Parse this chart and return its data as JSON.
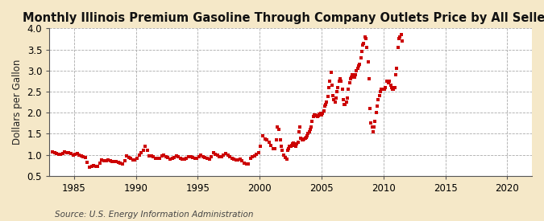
{
  "title": "Monthly Illinois Premium Gasoline Through Company Outlets Price by All Sellers",
  "ylabel": "Dollars per Gallon",
  "source": "Source: U.S. Energy Information Administration",
  "xlim": [
    1983,
    2022
  ],
  "ylim": [
    0.5,
    4.0
  ],
  "yticks": [
    0.5,
    1.0,
    1.5,
    2.0,
    2.5,
    3.0,
    3.5,
    4.0
  ],
  "xticks": [
    1985,
    1990,
    1995,
    2000,
    2005,
    2010,
    2015,
    2020
  ],
  "figure_bg_color": "#f5e8c8",
  "plot_bg_color": "#ffffff",
  "line_color": "#cc0000",
  "marker_color": "#cc0000",
  "title_fontsize": 10.5,
  "label_fontsize": 8.5,
  "tick_fontsize": 8.5,
  "source_fontsize": 7.5,
  "data": [
    [
      1983.25,
      1.07
    ],
    [
      1983.42,
      1.04
    ],
    [
      1983.58,
      1.02
    ],
    [
      1983.75,
      1.01
    ],
    [
      1983.92,
      1.01
    ],
    [
      1984.08,
      1.03
    ],
    [
      1984.25,
      1.06
    ],
    [
      1984.42,
      1.05
    ],
    [
      1984.58,
      1.04
    ],
    [
      1984.75,
      1.02
    ],
    [
      1984.92,
      0.99
    ],
    [
      1985.08,
      1.01
    ],
    [
      1985.25,
      1.02
    ],
    [
      1985.42,
      0.99
    ],
    [
      1985.58,
      0.97
    ],
    [
      1985.75,
      0.95
    ],
    [
      1985.92,
      0.93
    ],
    [
      1986.08,
      0.82
    ],
    [
      1986.25,
      0.71
    ],
    [
      1986.42,
      0.73
    ],
    [
      1986.58,
      0.75
    ],
    [
      1986.75,
      0.73
    ],
    [
      1986.92,
      0.73
    ],
    [
      1987.08,
      0.8
    ],
    [
      1987.25,
      0.87
    ],
    [
      1987.42,
      0.85
    ],
    [
      1987.58,
      0.85
    ],
    [
      1987.75,
      0.87
    ],
    [
      1987.92,
      0.86
    ],
    [
      1988.08,
      0.84
    ],
    [
      1988.25,
      0.84
    ],
    [
      1988.42,
      0.84
    ],
    [
      1988.58,
      0.82
    ],
    [
      1988.75,
      0.8
    ],
    [
      1988.92,
      0.78
    ],
    [
      1989.08,
      0.85
    ],
    [
      1989.25,
      0.97
    ],
    [
      1989.42,
      0.94
    ],
    [
      1989.58,
      0.91
    ],
    [
      1989.75,
      0.87
    ],
    [
      1989.92,
      0.87
    ],
    [
      1990.08,
      0.91
    ],
    [
      1990.25,
      1.0
    ],
    [
      1990.42,
      1.04
    ],
    [
      1990.58,
      1.1
    ],
    [
      1990.75,
      1.2
    ],
    [
      1990.92,
      1.1
    ],
    [
      1991.08,
      0.97
    ],
    [
      1991.25,
      0.97
    ],
    [
      1991.42,
      0.96
    ],
    [
      1991.58,
      0.92
    ],
    [
      1991.75,
      0.91
    ],
    [
      1991.92,
      0.92
    ],
    [
      1992.08,
      0.97
    ],
    [
      1992.25,
      0.99
    ],
    [
      1992.42,
      0.96
    ],
    [
      1992.58,
      0.93
    ],
    [
      1992.75,
      0.9
    ],
    [
      1992.92,
      0.91
    ],
    [
      1993.08,
      0.94
    ],
    [
      1993.25,
      0.98
    ],
    [
      1993.42,
      0.95
    ],
    [
      1993.58,
      0.92
    ],
    [
      1993.75,
      0.9
    ],
    [
      1993.92,
      0.89
    ],
    [
      1994.08,
      0.91
    ],
    [
      1994.25,
      0.96
    ],
    [
      1994.42,
      0.96
    ],
    [
      1994.58,
      0.94
    ],
    [
      1994.75,
      0.92
    ],
    [
      1994.92,
      0.91
    ],
    [
      1995.08,
      0.95
    ],
    [
      1995.25,
      1.0
    ],
    [
      1995.42,
      0.96
    ],
    [
      1995.58,
      0.93
    ],
    [
      1995.75,
      0.91
    ],
    [
      1995.92,
      0.89
    ],
    [
      1996.08,
      0.96
    ],
    [
      1996.25,
      1.05
    ],
    [
      1996.42,
      1.01
    ],
    [
      1996.58,
      0.99
    ],
    [
      1996.75,
      0.96
    ],
    [
      1996.92,
      0.96
    ],
    [
      1997.08,
      0.99
    ],
    [
      1997.25,
      1.03
    ],
    [
      1997.42,
      0.99
    ],
    [
      1997.58,
      0.96
    ],
    [
      1997.75,
      0.92
    ],
    [
      1997.92,
      0.9
    ],
    [
      1998.08,
      0.88
    ],
    [
      1998.25,
      0.88
    ],
    [
      1998.42,
      0.89
    ],
    [
      1998.58,
      0.86
    ],
    [
      1998.75,
      0.8
    ],
    [
      1998.92,
      0.79
    ],
    [
      1999.08,
      0.79
    ],
    [
      1999.25,
      0.92
    ],
    [
      1999.42,
      0.96
    ],
    [
      1999.58,
      0.97
    ],
    [
      1999.75,
      1.01
    ],
    [
      1999.92,
      1.05
    ],
    [
      2000.08,
      1.2
    ],
    [
      2000.25,
      1.45
    ],
    [
      2000.42,
      1.38
    ],
    [
      2000.58,
      1.35
    ],
    [
      2000.75,
      1.3
    ],
    [
      2000.92,
      1.22
    ],
    [
      2001.08,
      1.15
    ],
    [
      2001.25,
      1.15
    ],
    [
      2001.33,
      1.35
    ],
    [
      2001.42,
      1.65
    ],
    [
      2001.58,
      1.6
    ],
    [
      2001.67,
      1.35
    ],
    [
      2001.75,
      1.2
    ],
    [
      2001.83,
      1.1
    ],
    [
      2001.92,
      1.0
    ],
    [
      2002.08,
      0.94
    ],
    [
      2002.17,
      0.9
    ],
    [
      2002.25,
      1.1
    ],
    [
      2002.33,
      1.15
    ],
    [
      2002.42,
      1.2
    ],
    [
      2002.5,
      1.2
    ],
    [
      2002.58,
      1.22
    ],
    [
      2002.67,
      1.25
    ],
    [
      2002.75,
      1.27
    ],
    [
      2002.83,
      1.22
    ],
    [
      2002.92,
      1.2
    ],
    [
      2003.0,
      1.25
    ],
    [
      2003.08,
      1.3
    ],
    [
      2003.17,
      1.55
    ],
    [
      2003.25,
      1.65
    ],
    [
      2003.33,
      1.4
    ],
    [
      2003.42,
      1.35
    ],
    [
      2003.5,
      1.35
    ],
    [
      2003.58,
      1.38
    ],
    [
      2003.67,
      1.4
    ],
    [
      2003.75,
      1.42
    ],
    [
      2003.83,
      1.45
    ],
    [
      2003.92,
      1.5
    ],
    [
      2004.0,
      1.55
    ],
    [
      2004.08,
      1.6
    ],
    [
      2004.17,
      1.65
    ],
    [
      2004.25,
      1.8
    ],
    [
      2004.33,
      1.9
    ],
    [
      2004.42,
      1.95
    ],
    [
      2004.5,
      1.95
    ],
    [
      2004.58,
      1.92
    ],
    [
      2004.67,
      1.9
    ],
    [
      2004.75,
      1.92
    ],
    [
      2004.83,
      1.97
    ],
    [
      2004.92,
      1.98
    ],
    [
      2005.0,
      1.95
    ],
    [
      2005.08,
      1.98
    ],
    [
      2005.17,
      2.05
    ],
    [
      2005.25,
      2.15
    ],
    [
      2005.33,
      2.2
    ],
    [
      2005.42,
      2.25
    ],
    [
      2005.5,
      2.38
    ],
    [
      2005.58,
      2.6
    ],
    [
      2005.67,
      2.75
    ],
    [
      2005.75,
      2.95
    ],
    [
      2005.83,
      2.65
    ],
    [
      2005.92,
      2.4
    ],
    [
      2006.0,
      2.3
    ],
    [
      2006.08,
      2.25
    ],
    [
      2006.17,
      2.35
    ],
    [
      2006.25,
      2.5
    ],
    [
      2006.33,
      2.6
    ],
    [
      2006.42,
      2.75
    ],
    [
      2006.5,
      2.8
    ],
    [
      2006.58,
      2.75
    ],
    [
      2006.67,
      2.55
    ],
    [
      2006.75,
      2.3
    ],
    [
      2006.83,
      2.2
    ],
    [
      2006.92,
      2.2
    ],
    [
      2007.0,
      2.25
    ],
    [
      2007.08,
      2.35
    ],
    [
      2007.17,
      2.55
    ],
    [
      2007.25,
      2.7
    ],
    [
      2007.33,
      2.8
    ],
    [
      2007.42,
      2.85
    ],
    [
      2007.5,
      2.9
    ],
    [
      2007.58,
      2.9
    ],
    [
      2007.67,
      2.85
    ],
    [
      2007.75,
      2.9
    ],
    [
      2007.83,
      3.0
    ],
    [
      2007.92,
      3.05
    ],
    [
      2008.0,
      3.1
    ],
    [
      2008.08,
      3.15
    ],
    [
      2008.17,
      3.3
    ],
    [
      2008.25,
      3.45
    ],
    [
      2008.33,
      3.6
    ],
    [
      2008.42,
      3.65
    ],
    [
      2008.5,
      3.8
    ],
    [
      2008.58,
      3.75
    ],
    [
      2008.67,
      3.55
    ],
    [
      2008.75,
      3.2
    ],
    [
      2008.83,
      2.8
    ],
    [
      2008.92,
      2.1
    ],
    [
      2009.0,
      1.75
    ],
    [
      2009.08,
      1.65
    ],
    [
      2009.17,
      1.55
    ],
    [
      2009.25,
      1.65
    ],
    [
      2009.33,
      1.8
    ],
    [
      2009.42,
      2.0
    ],
    [
      2009.5,
      2.15
    ],
    [
      2009.58,
      2.3
    ],
    [
      2009.67,
      2.4
    ],
    [
      2009.75,
      2.5
    ],
    [
      2009.83,
      2.55
    ],
    [
      2009.92,
      2.55
    ],
    [
      2010.0,
      2.55
    ],
    [
      2010.08,
      2.55
    ],
    [
      2010.17,
      2.6
    ],
    [
      2010.25,
      2.75
    ],
    [
      2010.33,
      2.75
    ],
    [
      2010.42,
      2.7
    ],
    [
      2010.5,
      2.75
    ],
    [
      2010.58,
      2.65
    ],
    [
      2010.67,
      2.6
    ],
    [
      2010.75,
      2.55
    ],
    [
      2010.83,
      2.55
    ],
    [
      2010.92,
      2.6
    ],
    [
      2011.0,
      2.9
    ],
    [
      2011.08,
      3.05
    ],
    [
      2011.17,
      3.55
    ],
    [
      2011.25,
      3.75
    ],
    [
      2011.33,
      3.8
    ],
    [
      2011.42,
      3.85
    ],
    [
      2011.5,
      3.7
    ]
  ]
}
